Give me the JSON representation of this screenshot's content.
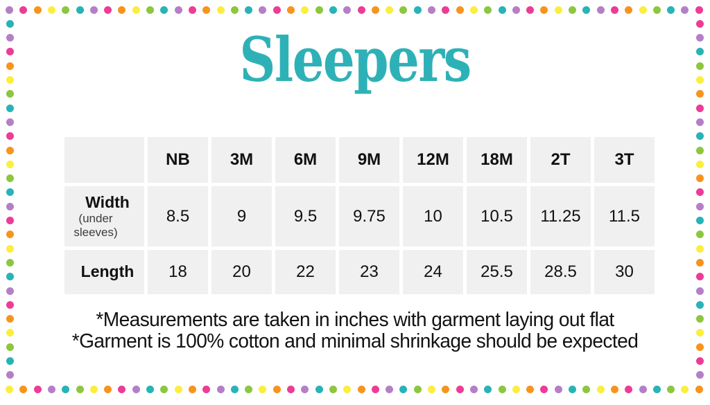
{
  "title": "Sleepers",
  "table": {
    "columns": [
      "NB",
      "3M",
      "6M",
      "9M",
      "12M",
      "18M",
      "2T",
      "3T"
    ],
    "rows": [
      {
        "label": "Width",
        "sublabel": "(under sleeves)",
        "values": [
          "8.5",
          "9",
          "9.5",
          "9.75",
          "10",
          "10.5",
          "11.25",
          "11.5"
        ]
      },
      {
        "label": "Length",
        "sublabel": "",
        "values": [
          "18",
          "20",
          "22",
          "23",
          "24",
          "25.5",
          "28.5",
          "30"
        ]
      }
    ]
  },
  "notes": [
    "*Measurements are taken in inches with garment laying out flat",
    "*Garment is 100% cotton and minimal shrinkage should be expected"
  ],
  "colors": {
    "title": "#2eb1b6",
    "cell_bg": "#f0f0f0",
    "text": "#111111",
    "dot_palette": [
      "#b57fc7",
      "#ec3c96",
      "#f7941d",
      "#fbee3e",
      "#8dc63f",
      "#28b3b7"
    ]
  },
  "chart_data": {
    "type": "table",
    "title": "Sleepers",
    "units": "inches",
    "columns": [
      "NB",
      "3M",
      "6M",
      "9M",
      "12M",
      "18M",
      "2T",
      "3T"
    ],
    "rows": [
      {
        "label": "Width (under sleeves)",
        "values": [
          8.5,
          9,
          9.5,
          9.75,
          10,
          10.5,
          11.25,
          11.5
        ]
      },
      {
        "label": "Length",
        "values": [
          18,
          20,
          22,
          23,
          24,
          25.5,
          28.5,
          30
        ]
      }
    ],
    "notes": [
      "*Measurements are taken in inches with garment laying out flat",
      "*Garment is 100% cotton and minimal shrinkage should be expected"
    ]
  }
}
